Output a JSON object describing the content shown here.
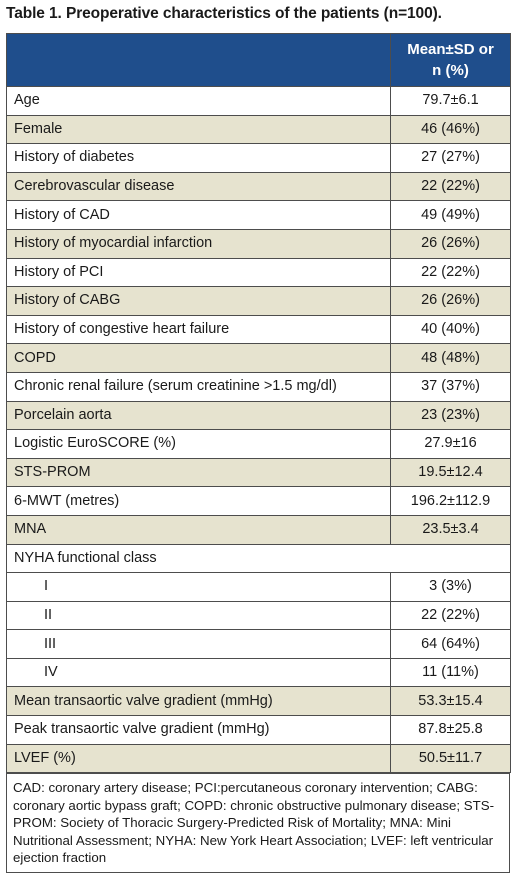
{
  "table": {
    "title": "Table 1. Preoperative characteristics of the patients (n=100).",
    "header": {
      "left": "",
      "right_line1": "Mean±SD or",
      "right_line2": "n (%)"
    },
    "rows": [
      {
        "label": "Age",
        "value": "79.7±6.1"
      },
      {
        "label": "Female",
        "value": "46 (46%)"
      },
      {
        "label": "History of diabetes",
        "value": "27 (27%)"
      },
      {
        "label": "Cerebrovascular disease",
        "value": "22 (22%)"
      },
      {
        "label": "History of CAD",
        "value": "49 (49%)"
      },
      {
        "label": "History of myocardial infarction",
        "value": "26 (26%)"
      },
      {
        "label": "History of PCI",
        "value": "22 (22%)"
      },
      {
        "label": "History of CABG",
        "value": "26 (26%)"
      },
      {
        "label": "History of congestive heart failure",
        "value": "40 (40%)"
      },
      {
        "label": "COPD",
        "value": "48 (48%)"
      },
      {
        "label": "Chronic renal failure (serum creatinine >1.5 mg/dl)",
        "value": "37 (37%)"
      },
      {
        "label": "Porcelain aorta",
        "value": "23 (23%)"
      },
      {
        "label": "Logistic EuroSCORE (%)",
        "value": "27.9±16"
      },
      {
        "label": "STS-PROM",
        "value": "19.5±12.4"
      },
      {
        "label": "6-MWT (metres)",
        "value": "196.2±112.9"
      },
      {
        "label": "MNA",
        "value": "23.5±3.4"
      },
      {
        "label": "NYHA functional class",
        "value": ""
      },
      {
        "label": "I",
        "value": "3 (3%)"
      },
      {
        "label": "II",
        "value": "22 (22%)"
      },
      {
        "label": "III",
        "value": "64 (64%)"
      },
      {
        "label": "IV",
        "value": "11 (11%)"
      },
      {
        "label": "Mean transaortic valve gradient (mmHg)",
        "value": "53.3±15.4"
      },
      {
        "label": "Peak transaortic valve gradient (mmHg)",
        "value": "87.8±25.8"
      },
      {
        "label": "LVEF (%)",
        "value": "50.5±11.7"
      }
    ],
    "footnote": "CAD: coronary artery disease; PCI:percutaneous coronary intervention; CABG: coronary aortic bypass graft; COPD: chronic obstructive pulmonary disease; STS-PROM: Society of Thoracic Surgery-Predicted Risk of Mortality; MNA: Mini Nutritional Assessment; NYHA: New York Heart Association; LVEF: left ventricular ejection fraction",
    "colors": {
      "header": "#1f4e8c",
      "shade": "#e6e3cf",
      "border": "#4d4d4d"
    }
  }
}
